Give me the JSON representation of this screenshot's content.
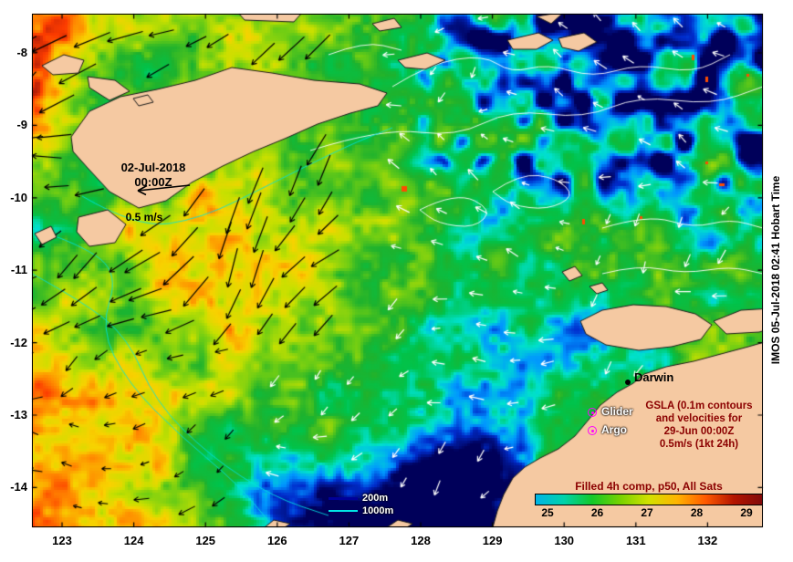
{
  "map": {
    "lat_ticks": [
      "-8",
      "-9",
      "-10",
      "-11",
      "-12",
      "-13",
      "-14"
    ],
    "lon_ticks": [
      "123",
      "124",
      "125",
      "126",
      "127",
      "128",
      "129",
      "130",
      "131",
      "132"
    ],
    "date_label": {
      "line1": "02-Jul-2018",
      "line2": "00:00Z"
    },
    "scale_label": "0.5 m/s",
    "city": "Darwin",
    "legend": {
      "glider": "Glider",
      "argo": "Argo"
    },
    "gsla_note": [
      "GSLA (0.1m contours",
      "and velocities for",
      "29-Jun 00:00Z",
      "0.5m/s (1kt 24h)"
    ],
    "depth_legend": [
      {
        "label": "200m",
        "color": "#000099"
      },
      {
        "label": "1000m",
        "color": "#00e6e6"
      }
    ],
    "colorbar": {
      "title": "Filled 4h comp, p50, All Sats",
      "ticks": [
        "25",
        "26",
        "27",
        "28",
        "29"
      ],
      "gradient": [
        "#00b4e6",
        "#00d2aa",
        "#14c828",
        "#78d200",
        "#d2e100",
        "#ffb400",
        "#ff5a00",
        "#b41400",
        "#820a0a"
      ]
    },
    "credit": "IMOS 05-Jul-2018 02:41 Hobart Time",
    "colors": {
      "land": "#f5c9a2",
      "coastline": "#1a1a1a",
      "annotation_red": "#8b0000",
      "marker_magenta": "#ff00ff",
      "arrow_black": "#000000",
      "arrow_white": "#ffffff",
      "contour_gsla": "#ffffff",
      "contour_bathy": "#00e0e0"
    }
  }
}
